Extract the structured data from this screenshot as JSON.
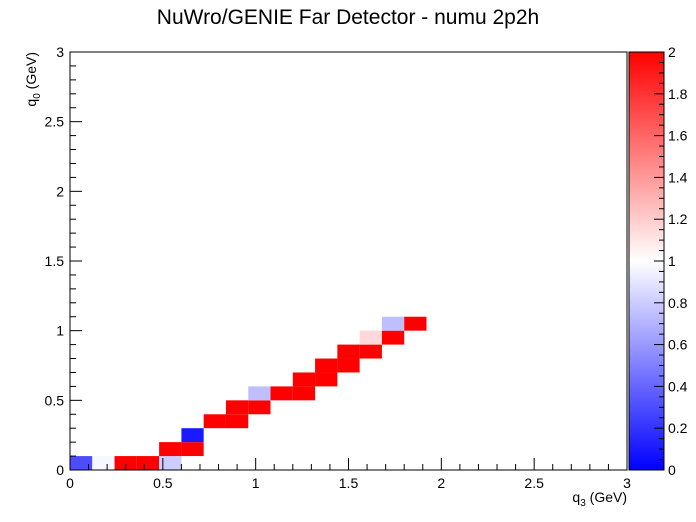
{
  "chart_data": {
    "type": "heatmap",
    "title": "NuWro/GENIE Far Detector - numu 2p2h",
    "xlabel": {
      "main": "q",
      "sub": "3",
      "unit": " (GeV)"
    },
    "ylabel": {
      "main": "q",
      "sub": "0",
      "unit": " (GeV)"
    },
    "xlim": [
      0,
      3
    ],
    "ylim": [
      0,
      3
    ],
    "zlim": [
      0,
      2
    ],
    "x_ticks": [
      "0",
      "0.5",
      "1",
      "1.5",
      "2",
      "2.5",
      "3"
    ],
    "y_ticks": [
      "0",
      "0.5",
      "1",
      "1.5",
      "2",
      "2.5",
      "3"
    ],
    "z_ticks": [
      "0",
      "0.2",
      "0.4",
      "0.6",
      "0.8",
      "1",
      "1.2",
      "1.4",
      "1.6",
      "1.8",
      "2"
    ],
    "bin_width": {
      "x": 0.12,
      "y": 0.1
    },
    "colorscale": [
      "#0000ff",
      "#ffffff",
      "#ff0000"
    ],
    "cells": [
      {
        "x": 0.0,
        "y": 0.0,
        "z": 0.3
      },
      {
        "x": 0.12,
        "y": 0.0,
        "z": 0.97
      },
      {
        "x": 0.24,
        "y": 0.0,
        "z": 2.0
      },
      {
        "x": 0.36,
        "y": 0.0,
        "z": 2.0
      },
      {
        "x": 0.48,
        "y": 0.0,
        "z": 0.8
      },
      {
        "x": 0.48,
        "y": 0.1,
        "z": 2.0
      },
      {
        "x": 0.6,
        "y": 0.1,
        "z": 2.0
      },
      {
        "x": 0.6,
        "y": 0.2,
        "z": 0.1
      },
      {
        "x": 0.72,
        "y": 0.3,
        "z": 2.0
      },
      {
        "x": 0.84,
        "y": 0.3,
        "z": 2.0
      },
      {
        "x": 0.84,
        "y": 0.4,
        "z": 2.0
      },
      {
        "x": 0.96,
        "y": 0.4,
        "z": 2.0
      },
      {
        "x": 0.96,
        "y": 0.5,
        "z": 0.75
      },
      {
        "x": 1.08,
        "y": 0.5,
        "z": 2.0
      },
      {
        "x": 1.2,
        "y": 0.5,
        "z": 2.0
      },
      {
        "x": 1.2,
        "y": 0.6,
        "z": 2.0
      },
      {
        "x": 1.32,
        "y": 0.6,
        "z": 2.0
      },
      {
        "x": 1.32,
        "y": 0.7,
        "z": 2.0
      },
      {
        "x": 1.44,
        "y": 0.7,
        "z": 2.0
      },
      {
        "x": 1.44,
        "y": 0.8,
        "z": 2.0
      },
      {
        "x": 1.56,
        "y": 0.8,
        "z": 2.0
      },
      {
        "x": 1.56,
        "y": 0.9,
        "z": 1.15
      },
      {
        "x": 1.68,
        "y": 0.9,
        "z": 2.0
      },
      {
        "x": 1.68,
        "y": 1.0,
        "z": 0.75
      },
      {
        "x": 1.8,
        "y": 1.0,
        "z": 2.0
      }
    ]
  }
}
